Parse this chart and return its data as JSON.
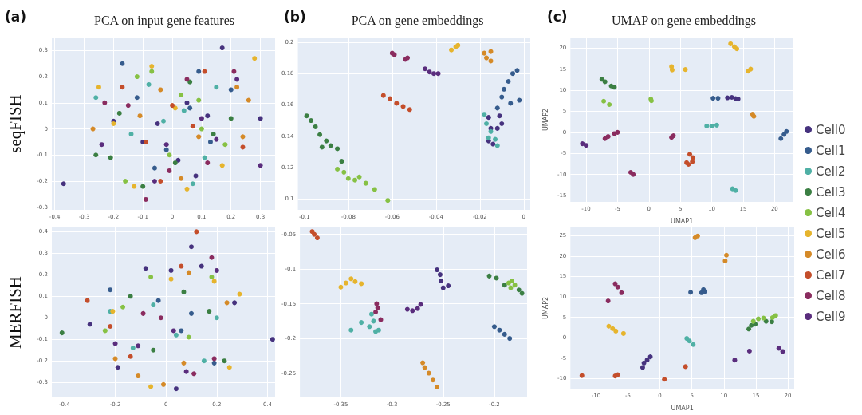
{
  "chart_data": [
    {
      "type": "scatter",
      "title": "PCA on input gene features",
      "ylabel": "seqFISH",
      "annotations": [
        "(a)"
      ],
      "xlim": [
        -0.41,
        0.35
      ],
      "ylim": [
        -0.31,
        0.35
      ],
      "xticks": [
        -0.4,
        -0.3,
        -0.2,
        -0.1,
        0,
        0.1,
        0.2,
        0.3
      ],
      "yticks": [
        -0.3,
        -0.2,
        -0.1,
        0,
        0.1,
        0.2,
        0.3
      ],
      "grid": true,
      "marker": "circle",
      "series": [
        {
          "color": "#46327e",
          "x": [
            -0.37,
            0.05,
            -0.1,
            0.12,
            0.08,
            -0.05,
            0.3,
            0.17,
            -0.2,
            0.02
          ],
          "values": [
            -0.21,
            0.1,
            -0.05,
            0.05,
            -0.18,
            0.02,
            0.04,
            0.31,
            0.03,
            -0.12
          ]
        },
        {
          "color": "#365c8d",
          "x": [
            -0.17,
            0.09,
            -0.02,
            0.13,
            -0.12,
            0.06,
            0.2,
            -0.06
          ],
          "values": [
            0.25,
            0.22,
            -0.08,
            -0.05,
            0.12,
            0.08,
            0.15,
            -0.15
          ]
        },
        {
          "color": "#4fb0a5",
          "x": [
            -0.26,
            0.15,
            -0.03,
            0.07,
            -0.14,
            0.04,
            0.11,
            -0.08
          ],
          "values": [
            0.12,
            0.16,
            0.03,
            -0.21,
            -0.02,
            0.07,
            -0.11,
            0.17
          ]
        },
        {
          "color": "#3b7f43",
          "x": [
            -0.26,
            -0.1,
            0.06,
            0.2,
            -0.18,
            0.01,
            0.14,
            -0.21
          ],
          "values": [
            -0.1,
            -0.22,
            0.18,
            0.04,
            0.06,
            -0.13,
            -0.02,
            -0.11
          ]
        },
        {
          "color": "#86c144",
          "x": [
            -0.16,
            -0.07,
            0.18,
            0.03,
            -0.12,
            0.1,
            -0.01,
            0.09
          ],
          "values": [
            -0.2,
            0.22,
            -0.06,
            0.13,
            0.2,
            0.0,
            -0.1,
            0.11
          ]
        },
        {
          "color": "#e6b42d",
          "x": [
            -0.25,
            -0.07,
            0.28,
            -0.13,
            0.05,
            0.17,
            -0.2,
            0.01
          ],
          "values": [
            0.16,
            0.24,
            0.27,
            -0.22,
            -0.23,
            -0.14,
            0.02,
            0.08
          ]
        },
        {
          "color": "#d58a28",
          "x": [
            -0.27,
            0.22,
            0.26,
            -0.04,
            0.09,
            -0.11,
            0.03,
            0.24
          ],
          "values": [
            0.0,
            0.16,
            0.11,
            0.15,
            -0.03,
            0.05,
            -0.19,
            -0.03
          ]
        },
        {
          "color": "#c44e2b",
          "x": [
            -0.17,
            0.11,
            0.24,
            -0.04,
            0.07,
            -0.09,
            0.0
          ],
          "values": [
            0.16,
            0.22,
            -0.07,
            -0.2,
            0.01,
            -0.05,
            0.09
          ]
        },
        {
          "color": "#8a2c5f",
          "x": [
            -0.23,
            -0.09,
            0.21,
            0.12,
            -0.01,
            0.05,
            -0.15
          ],
          "values": [
            0.1,
            -0.27,
            0.22,
            -0.13,
            -0.16,
            0.19,
            0.09
          ]
        },
        {
          "color": "#5a2d7d",
          "x": [
            -0.24,
            0.3,
            0.22,
            -0.06,
            0.1,
            -0.02,
            0.15
          ],
          "values": [
            -0.06,
            -0.14,
            0.19,
            -0.2,
            0.04,
            -0.06,
            -0.04
          ]
        }
      ]
    },
    {
      "type": "scatter",
      "title": "PCA on gene embeddings",
      "annotations": [
        "(b)"
      ],
      "xlim": [
        -0.103,
        0.003
      ],
      "ylim": [
        0.093,
        0.203
      ],
      "xticks": [
        -0.1,
        -0.08,
        -0.06,
        -0.04,
        -0.02,
        0
      ],
      "yticks": [
        0.1,
        0.12,
        0.14,
        0.16,
        0.18,
        0.2
      ],
      "grid": true,
      "marker": "circle",
      "series": [
        {
          "color": "#46327e",
          "x": [
            -0.016,
            -0.015,
            -0.016,
            -0.014,
            -0.012,
            -0.011,
            -0.01
          ],
          "values": [
            0.152,
            0.145,
            0.137,
            0.135,
            0.145,
            0.153,
            0.148
          ]
        },
        {
          "color": "#365c8d",
          "x": [
            -0.012,
            -0.01,
            -0.009,
            -0.007,
            -0.005,
            -0.003,
            -0.002,
            -0.006
          ],
          "values": [
            0.158,
            0.165,
            0.17,
            0.175,
            0.18,
            0.182,
            0.163,
            0.161
          ]
        },
        {
          "color": "#4fb0a5",
          "x": [
            -0.018,
            -0.017,
            -0.015,
            -0.013,
            -0.012,
            -0.016
          ],
          "values": [
            0.154,
            0.148,
            0.143,
            0.138,
            0.134,
            0.139
          ]
        },
        {
          "color": "#3b7f43",
          "x": [
            -0.099,
            -0.097,
            -0.095,
            -0.093,
            -0.09,
            -0.088,
            -0.092,
            -0.085,
            -0.083
          ],
          "values": [
            0.153,
            0.15,
            0.146,
            0.141,
            0.137,
            0.134,
            0.133,
            0.132,
            0.124
          ]
        },
        {
          "color": "#86c144",
          "x": [
            -0.085,
            -0.082,
            -0.08,
            -0.077,
            -0.075,
            -0.072,
            -0.068,
            -0.062
          ],
          "values": [
            0.119,
            0.117,
            0.113,
            0.112,
            0.114,
            0.11,
            0.106,
            0.099
          ]
        },
        {
          "color": "#e6b42d",
          "x": [
            -0.033,
            -0.031,
            -0.03
          ],
          "values": [
            0.195,
            0.197,
            0.198
          ]
        },
        {
          "color": "#d58a28",
          "x": [
            -0.018,
            -0.017,
            -0.015,
            -0.015
          ],
          "values": [
            0.193,
            0.19,
            0.188,
            0.194
          ]
        },
        {
          "color": "#c44e2b",
          "x": [
            -0.064,
            -0.061,
            -0.058,
            -0.055,
            -0.052
          ],
          "values": [
            0.166,
            0.164,
            0.161,
            0.159,
            0.157
          ]
        },
        {
          "color": "#8a2c5f",
          "x": [
            -0.06,
            -0.059,
            -0.054,
            -0.053
          ],
          "values": [
            0.193,
            0.192,
            0.189,
            0.19
          ]
        },
        {
          "color": "#5a2d7d",
          "x": [
            -0.045,
            -0.043,
            -0.041,
            -0.039
          ],
          "values": [
            0.183,
            0.181,
            0.18,
            0.18
          ]
        }
      ]
    },
    {
      "type": "scatter",
      "title": "UMAP on gene embeddings",
      "xlabel": "UMAP1",
      "ylabel": "UMAP2",
      "annotations": [
        "(c)"
      ],
      "xlim": [
        -12.5,
        23
      ],
      "ylim": [
        -16.5,
        22.5
      ],
      "xticks": [
        -10,
        -5,
        0,
        5,
        10,
        15,
        20
      ],
      "yticks": [
        -15,
        -10,
        -5,
        0,
        5,
        10,
        15,
        20
      ],
      "grid": true,
      "marker": "circle",
      "legend": "right",
      "series": [
        {
          "name": "Cell0",
          "color": "#46327e",
          "x": [
            12.5,
            13.2,
            13.8,
            14.2
          ],
          "values": [
            8.2,
            8.3,
            8.0,
            7.9
          ]
        },
        {
          "name": "Cell1",
          "color": "#365c8d",
          "x": [
            10.2,
            11,
            21,
            21.5,
            21.9
          ],
          "values": [
            8.1,
            8.1,
            -1.5,
            -0.5,
            0.2
          ]
        },
        {
          "name": "Cell2",
          "color": "#4fb0a5",
          "x": [
            9.2,
            10,
            10.8,
            13.3,
            13.8
          ],
          "values": [
            1.5,
            1.5,
            1.7,
            -13.4,
            -13.8
          ]
        },
        {
          "name": "Cell3",
          "color": "#3b7f43",
          "x": [
            -7.5,
            -7,
            -6,
            -5.5
          ],
          "values": [
            12.6,
            12,
            11,
            10.7
          ]
        },
        {
          "name": "Cell4",
          "color": "#86c144",
          "x": [
            -7.2,
            -6.3,
            0.3,
            0.4
          ],
          "values": [
            7.4,
            6.6,
            7.9,
            7.5
          ]
        },
        {
          "name": "Cell5",
          "color": "#e6b42d",
          "x": [
            3.6,
            3.7,
            5.8,
            13,
            13.6,
            14,
            15.8,
            16.2
          ],
          "values": [
            15.6,
            14.8,
            14.9,
            21,
            20.3,
            19.8,
            14.5,
            15
          ]
        },
        {
          "name": "Cell6",
          "color": "#d58a28",
          "x": [
            16.5,
            16.7
          ],
          "values": [
            4.3,
            3.8
          ]
        },
        {
          "name": "Cell7",
          "color": "#c44e2b",
          "x": [
            6.5,
            7,
            6.9,
            6.3,
            6
          ],
          "values": [
            -5.2,
            -6,
            -7,
            -7.6,
            -7.2
          ]
        },
        {
          "name": "Cell8",
          "color": "#8a2c5f",
          "x": [
            -7,
            -6.5,
            -5.5,
            -5,
            3.6,
            3.9,
            -2.9,
            -2.5
          ],
          "values": [
            -1.5,
            -1,
            -0.3,
            0,
            -1.2,
            -0.8,
            -9.5,
            -10
          ]
        },
        {
          "name": "Cell9",
          "color": "#5a2d7d",
          "x": [
            -10.6,
            -10
          ],
          "values": [
            -2.7,
            -3.1
          ]
        }
      ]
    },
    {
      "type": "scatter",
      "ylabel": "MERFISH",
      "xlim": [
        -0.45,
        0.43
      ],
      "ylim": [
        -0.37,
        0.42
      ],
      "xticks": [
        -0.4,
        -0.2,
        0,
        0.2,
        0.4
      ],
      "yticks": [
        -0.3,
        -0.2,
        -0.1,
        0,
        0.1,
        0.2,
        0.3,
        0.4
      ],
      "grid": true,
      "marker": "circle",
      "series": [
        {
          "color": "#46327e",
          "x": [
            0.42,
            -0.3,
            0.1,
            0.04,
            -0.19,
            0.27,
            0.14,
            -0.08,
            0.02
          ],
          "values": [
            -0.1,
            -0.03,
            0.33,
            -0.33,
            -0.23,
            0.07,
            0.24,
            0.23,
            0.22
          ]
        },
        {
          "color": "#365c8d",
          "x": [
            -0.22,
            0.06,
            0.19,
            -0.03,
            0.1
          ],
          "values": [
            0.13,
            -0.06,
            -0.21,
            0.08,
            0.02
          ]
        },
        {
          "color": "#4fb0a5",
          "x": [
            -0.22,
            0.2,
            -0.13,
            0.04,
            0.15,
            -0.05
          ],
          "values": [
            0.03,
            0.0,
            -0.14,
            -0.08,
            -0.2,
            0.06
          ]
        },
        {
          "color": "#3b7f43",
          "x": [
            -0.41,
            0.17,
            0.23,
            -0.05,
            0.07,
            -0.14
          ],
          "values": [
            -0.07,
            0.03,
            -0.2,
            -0.15,
            0.12,
            0.1
          ]
        },
        {
          "color": "#86c144",
          "x": [
            -0.24,
            0.18,
            -0.06,
            0.09,
            -0.17
          ],
          "values": [
            -0.06,
            0.19,
            0.19,
            -0.09,
            0.05
          ]
        },
        {
          "color": "#e6b42d",
          "x": [
            0.29,
            0.25,
            -0.06,
            0.19,
            -0.21,
            0.02
          ],
          "values": [
            0.11,
            -0.23,
            -0.32,
            0.17,
            0.03,
            0.18
          ]
        },
        {
          "color": "#d58a28",
          "x": [
            0.24,
            -0.11,
            -0.01,
            0.07,
            -0.2,
            0.09
          ],
          "values": [
            0.07,
            -0.27,
            -0.31,
            -0.21,
            -0.19,
            0.21
          ]
        },
        {
          "color": "#c44e2b",
          "x": [
            -0.31,
            0.12,
            -0.14,
            0.06,
            -0.22
          ],
          "values": [
            0.08,
            0.4,
            -0.18,
            0.24,
            -0.04
          ]
        },
        {
          "color": "#8a2c5f",
          "x": [
            0.18,
            0.19,
            -0.02,
            0.11,
            -0.09
          ],
          "values": [
            0.28,
            -0.19,
            0.0,
            -0.26,
            0.02
          ]
        },
        {
          "color": "#5a2d7d",
          "x": [
            0.2,
            -0.2,
            0.08,
            -0.11,
            0.03
          ],
          "values": [
            0.22,
            -0.12,
            -0.25,
            -0.13,
            -0.06
          ]
        }
      ]
    },
    {
      "type": "scatter",
      "xlim": [
        -0.39,
        -0.168
      ],
      "ylim": [
        -0.285,
        -0.04
      ],
      "xticks": [
        -0.35,
        -0.3,
        -0.25,
        -0.2
      ],
      "yticks": [
        -0.25,
        -0.2,
        -0.15,
        -0.1,
        -0.05
      ],
      "grid": true,
      "marker": "circle",
      "series": [
        {
          "color": "#46327e",
          "x": [
            -0.256,
            -0.253,
            -0.252,
            -0.25,
            -0.245
          ],
          "values": [
            -0.101,
            -0.108,
            -0.117,
            -0.127,
            -0.124
          ]
        },
        {
          "color": "#365c8d",
          "x": [
            -0.2,
            -0.195,
            -0.19,
            -0.185
          ],
          "values": [
            -0.183,
            -0.188,
            -0.194,
            -0.2
          ]
        },
        {
          "color": "#4fb0a5",
          "x": [
            -0.34,
            -0.33,
            -0.32,
            -0.318,
            -0.316,
            -0.313,
            -0.322
          ],
          "values": [
            -0.188,
            -0.177,
            -0.165,
            -0.175,
            -0.19,
            -0.188,
            -0.183
          ]
        },
        {
          "color": "#3b7f43",
          "x": [
            -0.205,
            -0.198,
            -0.19,
            -0.176,
            -0.173
          ],
          "values": [
            -0.11,
            -0.113,
            -0.123,
            -0.13,
            -0.135
          ]
        },
        {
          "color": "#86c144",
          "x": [
            -0.186,
            -0.183,
            -0.18,
            -0.184
          ],
          "values": [
            -0.12,
            -0.117,
            -0.123,
            -0.127
          ]
        },
        {
          "color": "#e6b42d",
          "x": [
            -0.35,
            -0.345,
            -0.34,
            -0.336,
            -0.33
          ],
          "values": [
            -0.126,
            -0.12,
            -0.114,
            -0.118,
            -0.121
          ]
        },
        {
          "color": "#d58a28",
          "x": [
            -0.27,
            -0.268,
            -0.264,
            -0.26,
            -0.256
          ],
          "values": [
            -0.235,
            -0.242,
            -0.25,
            -0.26,
            -0.27
          ]
        },
        {
          "color": "#c44e2b",
          "x": [
            -0.378,
            -0.376,
            -0.373
          ],
          "values": [
            -0.046,
            -0.05,
            -0.055
          ]
        },
        {
          "color": "#8a2c5f",
          "x": [
            -0.315,
            -0.314,
            -0.316,
            -0.311
          ],
          "values": [
            -0.15,
            -0.156,
            -0.162,
            -0.173
          ]
        },
        {
          "color": "#5a2d7d",
          "x": [
            -0.285,
            -0.28,
            -0.275,
            -0.272
          ],
          "values": [
            -0.158,
            -0.16,
            -0.157,
            -0.151
          ]
        }
      ]
    },
    {
      "type": "scatter",
      "xlabel": "UMAP1",
      "ylabel": "UMAP2",
      "xlim": [
        -14,
        21
      ],
      "ylim": [
        -12.5,
        27
      ],
      "xticks": [
        -10,
        -5,
        0,
        5,
        10,
        15,
        20
      ],
      "yticks": [
        -10,
        -5,
        0,
        5,
        10,
        15,
        20,
        25
      ],
      "grid": true,
      "marker": "circle",
      "series": [
        {
          "color": "#46327e",
          "x": [
            -2.7,
            -2.5,
            -2,
            -1.5
          ],
          "values": [
            -7.3,
            -6.2,
            -5.5,
            -4.7
          ]
        },
        {
          "color": "#365c8d",
          "x": [
            4.8,
            6.5,
            6.8,
            7
          ],
          "values": [
            11.1,
            11,
            11.8,
            11.3
          ]
        },
        {
          "color": "#4fb0a5",
          "x": [
            4.2,
            4.6,
            5.2
          ],
          "values": [
            -0.2,
            -0.8,
            -1.7
          ]
        },
        {
          "color": "#3b7f43",
          "x": [
            13.9,
            14.3,
            14.9,
            16.6,
            17.5
          ],
          "values": [
            2.1,
            3,
            3.3,
            4.0,
            3.9
          ]
        },
        {
          "color": "#86c144",
          "x": [
            14.6,
            15.4,
            16.2,
            17.6,
            18.1
          ],
          "values": [
            4.0,
            4.6,
            4.8,
            4.9,
            5.4
          ]
        },
        {
          "color": "#e6b42d",
          "x": [
            -8,
            -7.4,
            -6.9,
            -5.7
          ],
          "values": [
            2.8,
            2.2,
            1.6,
            1
          ]
        },
        {
          "color": "#d58a28",
          "x": [
            5.5,
            5.9,
            10.2,
            10.4
          ],
          "values": [
            24.5,
            24.9,
            18.8,
            20.2
          ]
        },
        {
          "color": "#c44e2b",
          "x": [
            -12.2,
            -7,
            -6.6,
            0.7,
            4
          ],
          "values": [
            -9.3,
            -9.4,
            -9.1,
            -10.2,
            -7.1
          ]
        },
        {
          "color": "#8a2c5f",
          "x": [
            -7,
            -6.6,
            -6,
            -8.1
          ],
          "values": [
            13.2,
            12.4,
            11,
            9
          ]
        },
        {
          "color": "#5a2d7d",
          "x": [
            11.7,
            14,
            18.6,
            19.2
          ],
          "values": [
            -5.5,
            -3.3,
            -2.6,
            -3.4
          ]
        }
      ]
    }
  ]
}
